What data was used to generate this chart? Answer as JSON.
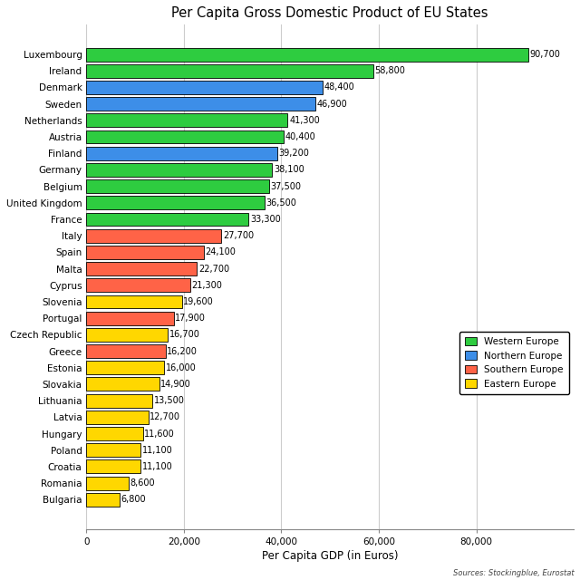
{
  "title": "Per Capita Gross Domestic Product of EU States",
  "xlabel": "Per Capita GDP (in Euros)",
  "source_text": "Sources: Stockingblue, Eurostat",
  "countries": [
    "Luxembourg",
    "Ireland",
    "Denmark",
    "Sweden",
    "Netherlands",
    "Austria",
    "Finland",
    "Germany",
    "Belgium",
    "United Kingdom",
    "France",
    "Italy",
    "Spain",
    "Malta",
    "Cyprus",
    "Slovenia",
    "Portugal",
    "Czech Republic",
    "Greece",
    "Estonia",
    "Slovakia",
    "Lithuania",
    "Latvia",
    "Hungary",
    "Poland",
    "Croatia",
    "Romania",
    "Bulgaria"
  ],
  "values": [
    90700,
    58800,
    48400,
    46900,
    41300,
    40400,
    39200,
    38100,
    37500,
    36500,
    33300,
    27700,
    24100,
    22700,
    21300,
    19600,
    17900,
    16700,
    16200,
    16000,
    14900,
    13500,
    12700,
    11600,
    11100,
    11100,
    8600,
    6800
  ],
  "regions": [
    "Western",
    "Western",
    "Northern",
    "Northern",
    "Western",
    "Western",
    "Northern",
    "Western",
    "Western",
    "Western",
    "Western",
    "Southern",
    "Southern",
    "Southern",
    "Southern",
    "Eastern",
    "Southern",
    "Eastern",
    "Southern",
    "Eastern",
    "Eastern",
    "Eastern",
    "Eastern",
    "Eastern",
    "Eastern",
    "Eastern",
    "Eastern",
    "Eastern"
  ],
  "colors": {
    "Western": "#2ECC40",
    "Northern": "#3D8EE8",
    "Southern": "#FF6347",
    "Eastern": "#FFD700"
  },
  "legend_labels": [
    "Western Europe",
    "Northern Europe",
    "Southern Europe",
    "Eastern Europe"
  ],
  "legend_colors": [
    "#2ECC40",
    "#3D8EE8",
    "#FF6347",
    "#FFD700"
  ],
  "xlim": [
    0,
    100000
  ],
  "xticks": [
    0,
    20000,
    40000,
    60000,
    80000
  ],
  "xtick_labels": [
    "0",
    "20,000",
    "40,000",
    "60,000",
    "80,000"
  ],
  "background_color": "#FFFFFF",
  "grid_color": "#CCCCCC",
  "bar_edge_color": "#000000",
  "bar_edge_width": 0.6,
  "bar_height": 0.82,
  "label_fontsize": 7.0,
  "tick_fontsize": 7.5,
  "title_fontsize": 10.5,
  "xlabel_fontsize": 8.5,
  "legend_fontsize": 7.5
}
